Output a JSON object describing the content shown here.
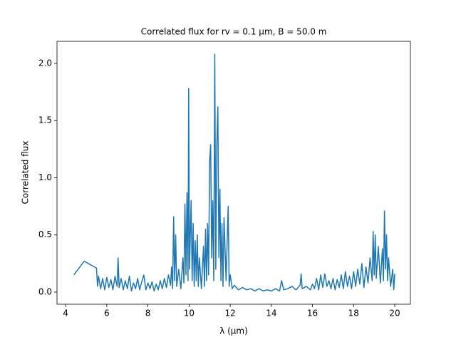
{
  "chart_data": {
    "type": "line",
    "title": "Correlated flux for rv = 0.1 μm, B = 50.0 m",
    "xlabel": "λ (μm)",
    "ylabel": "Correlated flux",
    "xlim": [
      3.58,
      20.76
    ],
    "ylim": [
      -0.106,
      2.193
    ],
    "xticks": [
      4,
      6,
      8,
      10,
      12,
      14,
      16,
      18,
      20
    ],
    "yticks": [
      {
        "value": 0,
        "label": "0.0"
      },
      {
        "value": 0.5,
        "label": "0.5"
      },
      {
        "value": 1,
        "label": "1.0"
      },
      {
        "value": 1.5,
        "label": "1.5"
      },
      {
        "value": 2,
        "label": "2.0"
      }
    ],
    "color": "#1f77b4",
    "x": [
      4.4,
      4.9,
      5.5,
      5.55,
      5.6,
      5.7,
      5.8,
      5.9,
      6.0,
      6.1,
      6.2,
      6.3,
      6.4,
      6.5,
      6.55,
      6.6,
      6.7,
      6.8,
      6.9,
      7.0,
      7.1,
      7.2,
      7.3,
      7.4,
      7.5,
      7.6,
      7.7,
      7.8,
      7.9,
      8.0,
      8.1,
      8.2,
      8.3,
      8.4,
      8.5,
      8.6,
      8.7,
      8.8,
      8.9,
      9.0,
      9.1,
      9.15,
      9.2,
      9.25,
      9.3,
      9.35,
      9.4,
      9.5,
      9.6,
      9.7,
      9.75,
      9.8,
      9.85,
      9.9,
      9.95,
      9.98,
      10.02,
      10.1,
      10.15,
      10.2,
      10.25,
      10.3,
      10.35,
      10.4,
      10.45,
      10.5,
      10.6,
      10.7,
      10.75,
      10.8,
      10.85,
      10.9,
      10.95,
      11.0,
      11.05,
      11.1,
      11.15,
      11.2,
      11.25,
      11.3,
      11.35,
      11.4,
      11.45,
      11.5,
      11.55,
      11.6,
      11.65,
      11.7,
      11.8,
      11.9,
      11.95,
      12.0,
      12.1,
      12.2,
      12.4,
      12.6,
      12.8,
      13.0,
      13.2,
      13.4,
      13.6,
      13.8,
      14.0,
      14.2,
      14.4,
      14.5,
      14.6,
      14.8,
      15.0,
      15.2,
      15.4,
      15.45,
      15.5,
      15.7,
      15.9,
      16.0,
      16.1,
      16.2,
      16.3,
      16.4,
      16.5,
      16.6,
      16.7,
      16.8,
      16.9,
      17.0,
      17.1,
      17.2,
      17.3,
      17.4,
      17.5,
      17.6,
      17.7,
      17.8,
      17.9,
      18.0,
      18.1,
      18.2,
      18.3,
      18.4,
      18.5,
      18.6,
      18.7,
      18.8,
      18.9,
      18.95,
      19.0,
      19.05,
      19.1,
      19.2,
      19.3,
      19.4,
      19.45,
      19.5,
      19.55,
      19.6,
      19.65,
      19.7,
      19.8,
      19.9,
      19.95,
      20.0
    ],
    "values": [
      0.15,
      0.27,
      0.21,
      0.05,
      0.14,
      0.03,
      0.12,
      0.02,
      0.13,
      0.04,
      0.11,
      0.02,
      0.14,
      0.05,
      0.3,
      0.04,
      0.12,
      0.02,
      0.1,
      0.03,
      0.14,
      0.01,
      0.08,
      0.03,
      0.12,
      0.02,
      0.09,
      0.15,
      0.02,
      0.08,
      0.03,
      0.09,
      0.01,
      0.07,
      0.02,
      0.1,
      0.03,
      0.12,
      0.04,
      0.15,
      0.06,
      0.22,
      0.03,
      0.66,
      0.1,
      0.5,
      0.05,
      0.2,
      0.03,
      0.3,
      0.08,
      0.77,
      0.15,
      0.87,
      0.1,
      1.78,
      0.2,
      0.8,
      0.1,
      0.6,
      0.05,
      0.45,
      0.1,
      0.5,
      0.05,
      0.3,
      0.03,
      0.4,
      0.05,
      0.55,
      0.1,
      0.6,
      0.15,
      1.15,
      1.29,
      0.3,
      0.8,
      0.1,
      2.08,
      0.2,
      1.3,
      1.62,
      0.3,
      0.9,
      0.1,
      0.6,
      0.05,
      0.65,
      0.1,
      0.75,
      0.05,
      0.15,
      0.03,
      0.06,
      0.02,
      0.04,
      0.02,
      0.03,
      0.01,
      0.03,
      0.01,
      0.02,
      0.01,
      0.03,
      0.01,
      0.1,
      0.02,
      0.03,
      0.05,
      0.02,
      0.06,
      0.16,
      0.03,
      0.05,
      0.02,
      0.07,
      0.03,
      0.12,
      0.02,
      0.15,
      0.04,
      0.16,
      0.05,
      0.1,
      0.03,
      0.12,
      0.02,
      0.11,
      0.04,
      0.15,
      0.03,
      0.18,
      0.05,
      0.14,
      0.03,
      0.18,
      0.05,
      0.2,
      0.07,
      0.25,
      0.04,
      0.22,
      0.08,
      0.3,
      0.1,
      0.53,
      0.15,
      0.5,
      0.12,
      0.4,
      0.08,
      0.38,
      0.1,
      0.71,
      0.2,
      0.5,
      0.1,
      0.3,
      0.05,
      0.2,
      0.02,
      0.16
    ]
  }
}
